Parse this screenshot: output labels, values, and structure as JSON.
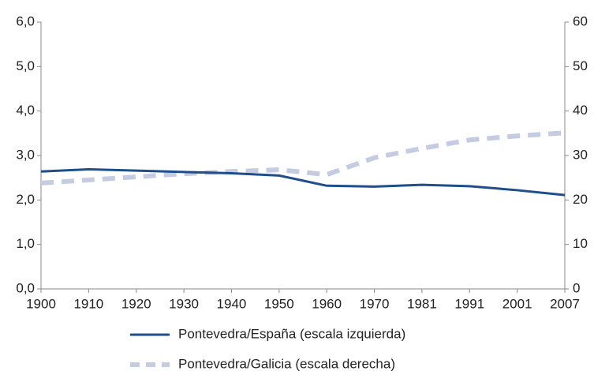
{
  "chart_data": {
    "type": "line",
    "categories": [
      "1900",
      "1910",
      "1920",
      "1930",
      "1940",
      "1950",
      "1960",
      "1970",
      "1981",
      "1991",
      "2001",
      "2007"
    ],
    "series": [
      {
        "name": "Pontevedra/España (escala izquierda)",
        "color": "#1f4e8c",
        "dashed": false,
        "axis": "y",
        "values": [
          2.64,
          2.69,
          2.66,
          2.63,
          2.6,
          2.55,
          2.32,
          2.3,
          2.34,
          2.31,
          2.22,
          2.11
        ]
      },
      {
        "name": "Pontevedra/Galicia (escala derecha)",
        "color": "#c5cbe0",
        "dashed": true,
        "axis": "y2",
        "values": [
          23.8,
          24.5,
          25.2,
          25.9,
          26.4,
          26.8,
          25.7,
          29.5,
          31.6,
          33.5,
          34.4,
          35.1
        ]
      }
    ],
    "ylim": [
      0,
      6
    ],
    "yticks": [
      {
        "value": 0,
        "label": "0,0"
      },
      {
        "value": 1,
        "label": "1,0"
      },
      {
        "value": 2,
        "label": "2,0"
      },
      {
        "value": 3,
        "label": "3,0"
      },
      {
        "value": 4,
        "label": "4,0"
      },
      {
        "value": 5,
        "label": "5,0"
      },
      {
        "value": 6,
        "label": "6,0"
      }
    ],
    "y2lim": [
      0,
      60
    ],
    "y2ticks": [
      0,
      10,
      20,
      30,
      40,
      50,
      60
    ],
    "grid": false
  }
}
